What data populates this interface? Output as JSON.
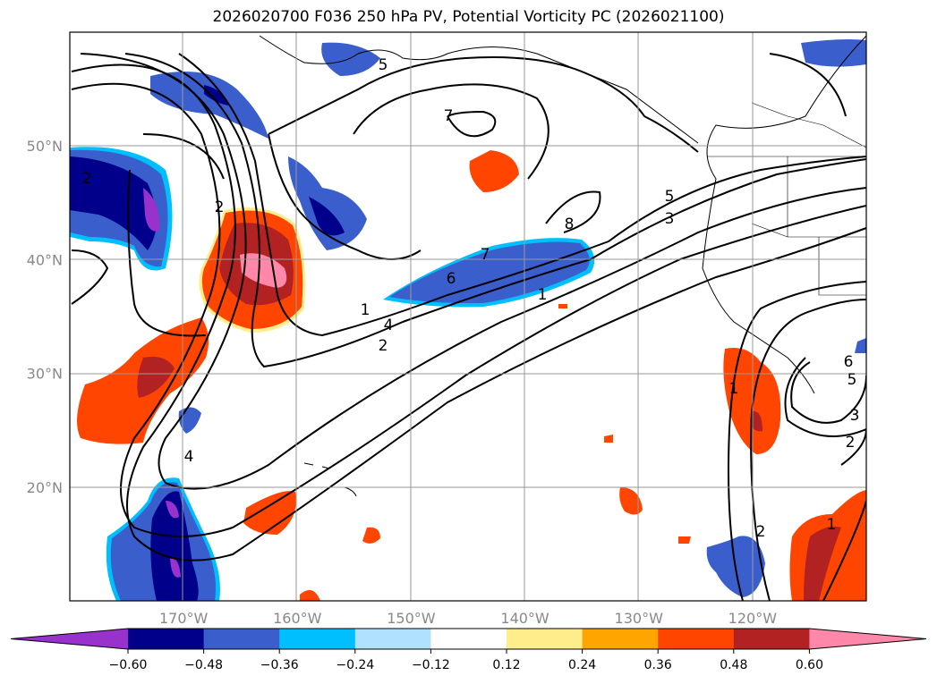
{
  "title": "2026020700 F036 250 hPa PV, Potential Vorticity PC (2026021100)",
  "map": {
    "lon_range": [
      -180,
      -110
    ],
    "lat_range": [
      10,
      60
    ],
    "lat_labels": [
      {
        "lat": 50,
        "label": "50°N"
      },
      {
        "lat": 40,
        "label": "40°N"
      },
      {
        "lat": 30,
        "label": "30°N"
      },
      {
        "lat": 20,
        "label": "20°N"
      }
    ],
    "lon_labels": [
      {
        "lon": -170,
        "label": "170°W"
      },
      {
        "lon": -160,
        "label": "160°W"
      },
      {
        "lon": -150,
        "label": "150°W"
      },
      {
        "lon": -140,
        "label": "140°W"
      },
      {
        "lon": -130,
        "label": "130°W"
      },
      {
        "lon": -120,
        "label": "120°W"
      }
    ],
    "contour_labels": [
      "5",
      "7",
      "8",
      "5",
      "3",
      "1",
      "7",
      "6",
      "4",
      "2",
      "1",
      "2",
      "4",
      "1",
      "6",
      "5",
      "2",
      "2",
      "1",
      "2",
      "3"
    ]
  },
  "colorbar": {
    "colors": [
      "#9932CC",
      "#00008B",
      "#3A5FCD",
      "#00BFFF",
      "#B0E2FF",
      "#FFFFFF",
      "#FFEC8B",
      "#FFA500",
      "#FF4500",
      "#B22222",
      "#FF88AA"
    ],
    "ticks": [
      "−0.60",
      "−0.48",
      "−0.36",
      "−0.24",
      "−0.12",
      "0.12",
      "0.24",
      "0.36",
      "0.48",
      "0.60"
    ]
  }
}
